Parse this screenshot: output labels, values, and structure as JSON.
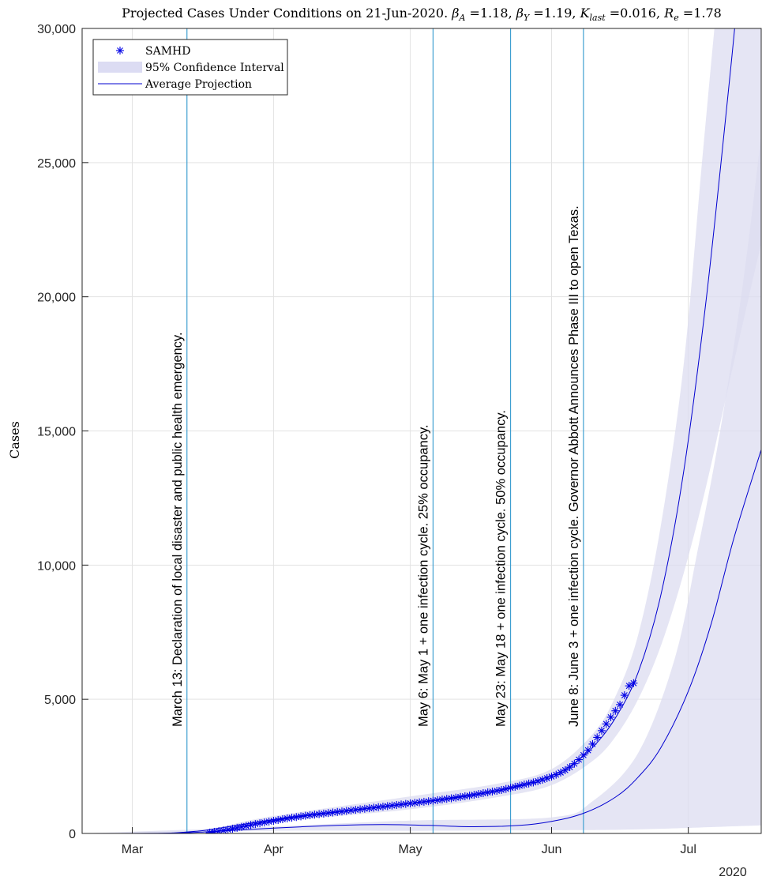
{
  "chart_data": {
    "type": "line",
    "title": "Projected Cases Under Conditions on 21-Jun-2020. βA =1.18, βY =1.19, Klast =0.016, Re =1.78",
    "title_parts": {
      "prefix": "Projected Cases Under Conditions on 21-Jun-2020.",
      "params": [
        {
          "symbol": "β",
          "sub": "A",
          "value": "=1.18,"
        },
        {
          "symbol": "β",
          "sub": "Y",
          "value": "=1.19,"
        },
        {
          "symbol": "K",
          "sub": "last",
          "value": "=0.016,"
        },
        {
          "symbol": "R",
          "sub": "e",
          "value": "=1.78"
        }
      ]
    },
    "ylabel": "Cases",
    "xlabel": "",
    "x_axis": {
      "type": "date",
      "range": [
        "2020-02-19",
        "2020-07-17"
      ],
      "ticks": [
        {
          "date": "2020-03-01",
          "label": "Mar"
        },
        {
          "date": "2020-04-01",
          "label": "Apr"
        },
        {
          "date": "2020-05-01",
          "label": "May"
        },
        {
          "date": "2020-06-01",
          "label": "Jun"
        },
        {
          "date": "2020-07-01",
          "label": "Jul"
        }
      ],
      "secondary_label": "2020"
    },
    "y_axis": {
      "range": [
        0,
        30000
      ],
      "ticks": [
        {
          "value": 0,
          "label": "0"
        },
        {
          "value": 5000,
          "label": "5,000"
        },
        {
          "value": 10000,
          "label": "10,000"
        },
        {
          "value": 15000,
          "label": "15,000"
        },
        {
          "value": 20000,
          "label": "20,000"
        },
        {
          "value": 25000,
          "label": "25,000"
        },
        {
          "value": 30000,
          "label": "30,000"
        }
      ]
    },
    "grid": true,
    "legend": {
      "position": "top-left",
      "entries": [
        {
          "label": "SAMHD",
          "kind": "marker",
          "color": "#0000e6"
        },
        {
          "label": "95% Confidence Interval",
          "kind": "patch",
          "color": "#dcdcf3"
        },
        {
          "label": "Average Projection",
          "kind": "line",
          "color": "#0000d0"
        }
      ]
    },
    "events": [
      {
        "date": "2020-03-13",
        "label": "March 13: Declaration of local disaster and public health emergency."
      },
      {
        "date": "2020-05-06",
        "label": "May 6: May 1 + one infection cycle. 25% occupancy."
      },
      {
        "date": "2020-05-23",
        "label": "May 23: May 18 + one infection cycle. 50% occupancy."
      },
      {
        "date": "2020-06-08",
        "label": "June 8: June 3 + one infection cycle. Governor Abbott Announces Phase III to open Texas."
      }
    ],
    "colors": {
      "samhd": "#0000e6",
      "projection": "#0000d0",
      "ci_fill": "#dcdcf0",
      "event_line": "#3f9fd1",
      "grid": "#e3e3e3",
      "axis": "#262626"
    },
    "series": [
      {
        "name": "SAMHD",
        "kind": "scatter",
        "points": [
          [
            "2020-03-18",
            30
          ],
          [
            "2020-03-19",
            60
          ],
          [
            "2020-03-20",
            85
          ],
          [
            "2020-03-21",
            110
          ],
          [
            "2020-03-22",
            140
          ],
          [
            "2020-03-23",
            175
          ],
          [
            "2020-03-24",
            210
          ],
          [
            "2020-03-25",
            245
          ],
          [
            "2020-03-26",
            280
          ],
          [
            "2020-03-27",
            315
          ],
          [
            "2020-03-28",
            350
          ],
          [
            "2020-03-29",
            380
          ],
          [
            "2020-03-30",
            410
          ],
          [
            "2020-03-31",
            440
          ],
          [
            "2020-04-01",
            470
          ],
          [
            "2020-04-02",
            500
          ],
          [
            "2020-04-03",
            530
          ],
          [
            "2020-04-04",
            560
          ],
          [
            "2020-04-05",
            585
          ],
          [
            "2020-04-06",
            610
          ],
          [
            "2020-04-07",
            635
          ],
          [
            "2020-04-08",
            660
          ],
          [
            "2020-04-09",
            680
          ],
          [
            "2020-04-10",
            700
          ],
          [
            "2020-04-11",
            720
          ],
          [
            "2020-04-12",
            740
          ],
          [
            "2020-04-13",
            760
          ],
          [
            "2020-04-14",
            780
          ],
          [
            "2020-04-15",
            800
          ],
          [
            "2020-04-16",
            820
          ],
          [
            "2020-04-17",
            840
          ],
          [
            "2020-04-18",
            860
          ],
          [
            "2020-04-19",
            880
          ],
          [
            "2020-04-20",
            900
          ],
          [
            "2020-04-21",
            920
          ],
          [
            "2020-04-22",
            940
          ],
          [
            "2020-04-23",
            960
          ],
          [
            "2020-04-24",
            980
          ],
          [
            "2020-04-25",
            1000
          ],
          [
            "2020-04-26",
            1020
          ],
          [
            "2020-04-27",
            1040
          ],
          [
            "2020-04-28",
            1060
          ],
          [
            "2020-04-29",
            1080
          ],
          [
            "2020-04-30",
            1100
          ],
          [
            "2020-05-01",
            1120
          ],
          [
            "2020-05-02",
            1140
          ],
          [
            "2020-05-03",
            1160
          ],
          [
            "2020-05-04",
            1180
          ],
          [
            "2020-05-05",
            1200
          ],
          [
            "2020-05-06",
            1220
          ],
          [
            "2020-05-07",
            1240
          ],
          [
            "2020-05-08",
            1265
          ],
          [
            "2020-05-09",
            1290
          ],
          [
            "2020-05-10",
            1310
          ],
          [
            "2020-05-11",
            1335
          ],
          [
            "2020-05-12",
            1360
          ],
          [
            "2020-05-13",
            1385
          ],
          [
            "2020-05-14",
            1410
          ],
          [
            "2020-05-15",
            1440
          ],
          [
            "2020-05-16",
            1470
          ],
          [
            "2020-05-17",
            1500
          ],
          [
            "2020-05-18",
            1530
          ],
          [
            "2020-05-19",
            1560
          ],
          [
            "2020-05-20",
            1590
          ],
          [
            "2020-05-21",
            1620
          ],
          [
            "2020-05-22",
            1660
          ],
          [
            "2020-05-23",
            1700
          ],
          [
            "2020-05-24",
            1740
          ],
          [
            "2020-05-25",
            1780
          ],
          [
            "2020-05-26",
            1820
          ],
          [
            "2020-05-27",
            1860
          ],
          [
            "2020-05-28",
            1900
          ],
          [
            "2020-05-29",
            1950
          ],
          [
            "2020-05-30",
            2000
          ],
          [
            "2020-05-31",
            2060
          ],
          [
            "2020-06-01",
            2120
          ],
          [
            "2020-06-02",
            2190
          ],
          [
            "2020-06-03",
            2270
          ],
          [
            "2020-06-04",
            2360
          ],
          [
            "2020-06-05",
            2470
          ],
          [
            "2020-06-06",
            2600
          ],
          [
            "2020-06-07",
            2750
          ],
          [
            "2020-06-08",
            2920
          ],
          [
            "2020-06-09",
            3100
          ],
          [
            "2020-06-10",
            3330
          ],
          [
            "2020-06-11",
            3580
          ],
          [
            "2020-06-12",
            3830
          ],
          [
            "2020-06-13",
            4080
          ],
          [
            "2020-06-14",
            4330
          ],
          [
            "2020-06-15",
            4570
          ],
          [
            "2020-06-16",
            4800
          ],
          [
            "2020-06-17",
            5150
          ],
          [
            "2020-06-18",
            5500
          ],
          [
            "2020-06-19",
            5600
          ]
        ]
      },
      {
        "name": "Average Projection",
        "kind": "line",
        "points": [
          [
            "2020-02-19",
            0
          ],
          [
            "2020-03-05",
            3
          ],
          [
            "2020-03-10",
            20
          ],
          [
            "2020-03-15",
            80
          ],
          [
            "2020-03-18",
            140
          ],
          [
            "2020-03-25",
            330
          ],
          [
            "2020-04-01",
            520
          ],
          [
            "2020-04-10",
            720
          ],
          [
            "2020-04-20",
            900
          ],
          [
            "2020-05-01",
            1120
          ],
          [
            "2020-05-10",
            1330
          ],
          [
            "2020-05-20",
            1600
          ],
          [
            "2020-05-25",
            1780
          ],
          [
            "2020-06-01",
            2150
          ],
          [
            "2020-06-05",
            2500
          ],
          [
            "2020-06-10",
            3200
          ],
          [
            "2020-06-15",
            4300
          ],
          [
            "2020-06-20",
            6000
          ],
          [
            "2020-06-25",
            8900
          ],
          [
            "2020-06-30",
            13500
          ],
          [
            "2020-07-05",
            20000
          ],
          [
            "2020-07-10",
            28000
          ],
          [
            "2020-07-12",
            31500
          ]
        ]
      },
      {
        "name": "Average Projection (lower)",
        "kind": "line",
        "points": [
          [
            "2020-02-19",
            0
          ],
          [
            "2020-03-10",
            10
          ],
          [
            "2020-03-20",
            90
          ],
          [
            "2020-04-01",
            200
          ],
          [
            "2020-04-15",
            300
          ],
          [
            "2020-04-25",
            330
          ],
          [
            "2020-05-05",
            300
          ],
          [
            "2020-05-15",
            250
          ],
          [
            "2020-05-25",
            300
          ],
          [
            "2020-06-01",
            450
          ],
          [
            "2020-06-08",
            750
          ],
          [
            "2020-06-15",
            1350
          ],
          [
            "2020-06-20",
            2100
          ],
          [
            "2020-06-25",
            3200
          ],
          [
            "2020-07-01",
            5300
          ],
          [
            "2020-07-06",
            7800
          ],
          [
            "2020-07-11",
            11000
          ],
          [
            "2020-07-17",
            14300
          ]
        ]
      },
      {
        "name": "95% Confidence Interval (upper band)",
        "kind": "band",
        "lower": [
          [
            "2020-02-19",
            0
          ],
          [
            "2020-03-15",
            40
          ],
          [
            "2020-04-01",
            420
          ],
          [
            "2020-05-01",
            900
          ],
          [
            "2020-05-20",
            1350
          ],
          [
            "2020-06-01",
            1800
          ],
          [
            "2020-06-10",
            2700
          ],
          [
            "2020-06-15",
            3600
          ],
          [
            "2020-06-20",
            5000
          ],
          [
            "2020-06-25",
            7000
          ],
          [
            "2020-06-30",
            9700
          ],
          [
            "2020-07-05",
            13000
          ],
          [
            "2020-07-10",
            16800
          ],
          [
            "2020-07-17",
            22000
          ]
        ],
        "upper": [
          [
            "2020-02-19",
            0
          ],
          [
            "2020-03-15",
            120
          ],
          [
            "2020-04-01",
            650
          ],
          [
            "2020-05-01",
            1380
          ],
          [
            "2020-05-20",
            1850
          ],
          [
            "2020-06-01",
            2400
          ],
          [
            "2020-06-10",
            3700
          ],
          [
            "2020-06-15",
            5100
          ],
          [
            "2020-06-20",
            7400
          ],
          [
            "2020-06-25",
            11500
          ],
          [
            "2020-06-30",
            17500
          ],
          [
            "2020-07-04",
            25000
          ],
          [
            "2020-07-07",
            30500
          ]
        ]
      },
      {
        "name": "95% Confidence Interval (lower band)",
        "kind": "band",
        "lower": [
          [
            "2020-02-19",
            0
          ],
          [
            "2020-04-01",
            100
          ],
          [
            "2020-05-01",
            100
          ],
          [
            "2020-06-01",
            120
          ],
          [
            "2020-06-20",
            150
          ],
          [
            "2020-07-17",
            300
          ]
        ],
        "upper": [
          [
            "2020-02-19",
            0
          ],
          [
            "2020-04-01",
            260
          ],
          [
            "2020-05-01",
            480
          ],
          [
            "2020-06-01",
            600
          ],
          [
            "2020-06-10",
            1200
          ],
          [
            "2020-06-20",
            3000
          ],
          [
            "2020-06-28",
            6500
          ],
          [
            "2020-07-03",
            10500
          ],
          [
            "2020-07-08",
            15000
          ],
          [
            "2020-07-13",
            20500
          ],
          [
            "2020-07-17",
            26000
          ]
        ]
      }
    ]
  }
}
